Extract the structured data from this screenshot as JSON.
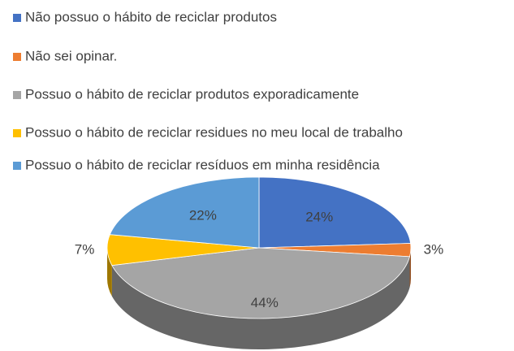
{
  "chart_data": {
    "type": "pie",
    "categories": [
      "Não possuo o hábito de reciclar produtos",
      "Não sei opinar.",
      "Possuo o hábito de reciclar produtos exporadicamente",
      "Possuo o hábito de reciclar residues no meu local de trabalho",
      "Possuo o hábito de reciclar resíduos em minha residência"
    ],
    "values": [
      24,
      3,
      44,
      7,
      22
    ],
    "value_labels": [
      "24%",
      "3%",
      "44%",
      "7%",
      "22%"
    ],
    "colors": [
      "#4472c4",
      "#ed7d31",
      "#a5a5a5",
      "#ffc000",
      "#5b9bd5"
    ],
    "legend": "top"
  }
}
